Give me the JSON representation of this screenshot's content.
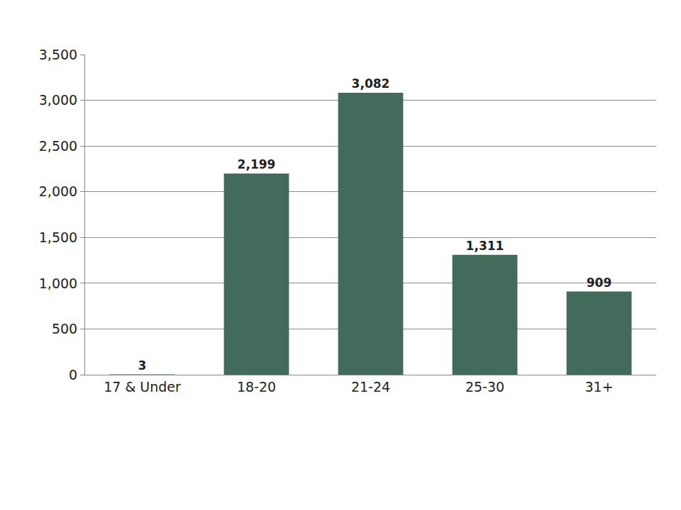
{
  "chart_data": {
    "type": "bar",
    "categories": [
      "17 & Under",
      "18-20",
      "21-24",
      "25-30",
      "31+"
    ],
    "values": [
      3,
      2199,
      3082,
      1311,
      909
    ],
    "value_labels": [
      "3",
      "2,199",
      "3,082",
      "1,311",
      "909"
    ],
    "color": "#436b5c",
    "ylim": [
      0,
      3500
    ],
    "yticks": [
      0,
      500,
      {
        "value": 1000,
        "label": "1,000"
      },
      {
        "value": 1500,
        "label": "1,500"
      },
      {
        "value": 2000,
        "label": "2,000"
      },
      {
        "value": 2500,
        "label": "2,500"
      },
      {
        "value": 3000,
        "label": "3,000"
      },
      {
        "value": 3500,
        "label": "3,500"
      }
    ],
    "grid": true,
    "data_labels": true
  }
}
